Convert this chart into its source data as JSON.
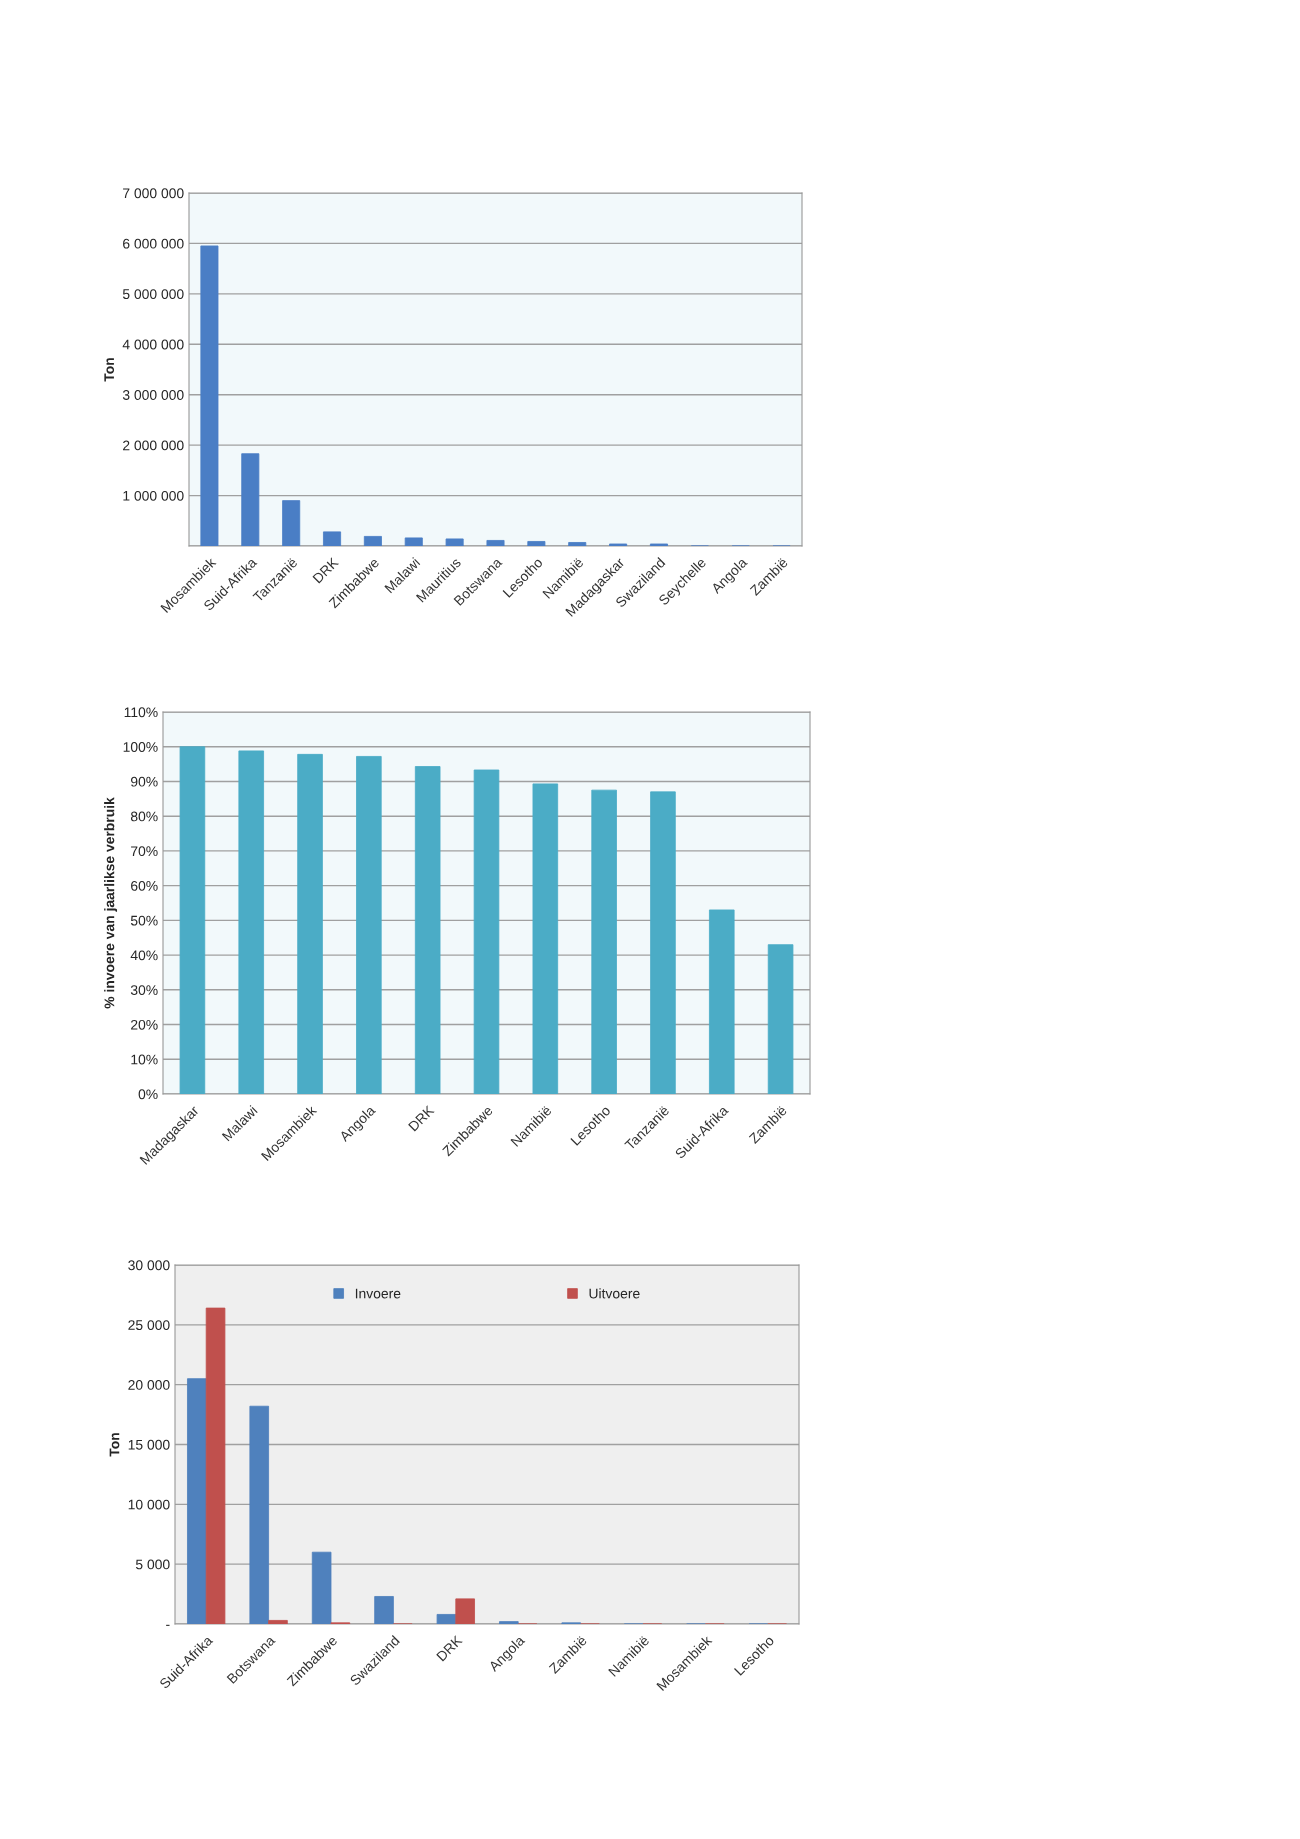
{
  "chart_data": [
    {
      "type": "bar",
      "ylabel": "Ton",
      "categories": [
        "Mosambiek",
        "Suid-Afrika",
        "Tanzanië",
        "DRK",
        "Zimbabwe",
        "Malawi",
        "Mauritius",
        "Botswana",
        "Lesotho",
        "Namibië",
        "Madagaskar",
        "Swaziland",
        "Seychelle",
        "Angola",
        "Zambië"
      ],
      "series": [
        {
          "color": "#4a7ec5",
          "values": [
            5950000,
            1830000,
            900000,
            280000,
            190000,
            160000,
            140000,
            110000,
            90000,
            70000,
            40000,
            40000,
            0,
            0,
            0
          ]
        }
      ],
      "ylim": [
        0,
        7000000
      ],
      "yticks": [
        {
          "value": 0,
          "label": null
        },
        {
          "value": 1000000,
          "label": "1 000 000"
        },
        {
          "value": 2000000,
          "label": "2 000 000"
        },
        {
          "value": 3000000,
          "label": "3 000 000"
        },
        {
          "value": 4000000,
          "label": "4 000 000"
        },
        {
          "value": 5000000,
          "label": "5 000 000"
        },
        {
          "value": 6000000,
          "label": "6 000 000"
        },
        {
          "value": 7000000,
          "label": "7 000 000"
        }
      ],
      "grid": "y",
      "legend": false
    },
    {
      "type": "bar",
      "ylabel": "% invoere van jaarlikse verbruik",
      "categories": [
        "Madagaskar",
        "Malawi",
        "Mosambiek",
        "Angola",
        "DRK",
        "Zimbabwe",
        "Namibië",
        "Lesotho",
        "Tanzanië",
        "Suid-Afrika",
        "Zambië"
      ],
      "series": [
        {
          "color": "#4bacc6",
          "values": [
            100,
            98.8,
            97.8,
            97.2,
            94.3,
            93.3,
            89.3,
            87.5,
            87,
            53,
            43
          ]
        }
      ],
      "ylim": [
        0,
        110
      ],
      "yticks": [
        {
          "value": 0,
          "label": "0%"
        },
        {
          "value": 10,
          "label": "10%"
        },
        {
          "value": 20,
          "label": "20%"
        },
        {
          "value": 30,
          "label": "30%"
        },
        {
          "value": 40,
          "label": "40%"
        },
        {
          "value": 50,
          "label": "50%"
        },
        {
          "value": 60,
          "label": "60%"
        },
        {
          "value": 70,
          "label": "70%"
        },
        {
          "value": 80,
          "label": "80%"
        },
        {
          "value": 90,
          "label": "90%"
        },
        {
          "value": 100,
          "label": "100%"
        },
        {
          "value": 110,
          "label": "110%"
        }
      ],
      "grid": "y",
      "legend": false
    },
    {
      "type": "bar",
      "ylabel": "Ton",
      "categories": [
        "Suid-Afrika",
        "Botswana",
        "Zimbabwe",
        "Swaziland",
        "DRK",
        "Angola",
        "Zambië",
        "Namibië",
        "Mosambiek",
        "Lesotho"
      ],
      "series": [
        {
          "name": "Invoere",
          "color": "#4f81bd",
          "values": [
            20500,
            18200,
            6000,
            2300,
            800,
            200,
            100,
            0,
            0,
            0
          ]
        },
        {
          "name": "Uitvoere",
          "color": "#c0504d",
          "values": [
            26400,
            300,
            100,
            0,
            2100,
            0,
            0,
            0,
            0,
            0
          ]
        }
      ],
      "ylim": [
        0,
        30000
      ],
      "yticks": [
        {
          "value": 0,
          "label": "-"
        },
        {
          "value": 5000,
          "label": "5 000"
        },
        {
          "value": 10000,
          "label": "10 000"
        },
        {
          "value": 15000,
          "label": "15 000"
        },
        {
          "value": 20000,
          "label": "20 000"
        },
        {
          "value": 25000,
          "label": "25 000"
        },
        {
          "value": 30000,
          "label": "30 000"
        }
      ],
      "grid": "y",
      "legend": "top"
    }
  ]
}
